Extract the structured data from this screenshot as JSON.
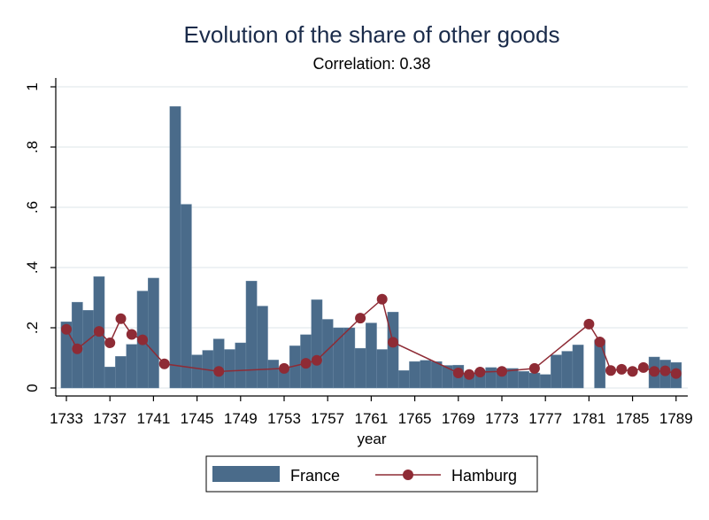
{
  "chart_data": {
    "type": "bar",
    "title": "Evolution of the share of other goods",
    "subtitle": "Correlation: 0.38",
    "xlabel": "year",
    "ylabel": "",
    "ylim": [
      0,
      1
    ],
    "yticks": [
      0,
      0.2,
      0.4,
      0.6,
      0.8,
      1
    ],
    "ytick_labels": [
      "0",
      ".2",
      ".4",
      ".6",
      ".8",
      "1"
    ],
    "xlim": [
      1732,
      1790
    ],
    "xticks": [
      1733,
      1737,
      1741,
      1745,
      1749,
      1753,
      1757,
      1761,
      1765,
      1769,
      1773,
      1777,
      1781,
      1785,
      1789
    ],
    "grid": true,
    "legend_position": "bottom",
    "colors": {
      "France": "#4a6b8a",
      "Hamburg": "#8e2b35"
    },
    "series": [
      {
        "name": "France",
        "type": "bar",
        "x": [
          1733,
          1734,
          1735,
          1736,
          1737,
          1738,
          1739,
          1740,
          1741,
          1743,
          1744,
          1745,
          1746,
          1747,
          1748,
          1749,
          1750,
          1751,
          1752,
          1753,
          1754,
          1755,
          1756,
          1757,
          1758,
          1759,
          1760,
          1761,
          1762,
          1763,
          1764,
          1765,
          1766,
          1767,
          1768,
          1769,
          1770,
          1771,
          1772,
          1773,
          1774,
          1775,
          1776,
          1777,
          1778,
          1779,
          1780,
          1782,
          1787,
          1788,
          1789
        ],
        "values": [
          0.22,
          0.285,
          0.258,
          0.37,
          0.07,
          0.105,
          0.145,
          0.322,
          0.365,
          0.935,
          0.61,
          0.11,
          0.125,
          0.163,
          0.128,
          0.15,
          0.355,
          0.272,
          0.093,
          0.065,
          0.14,
          0.177,
          0.293,
          0.228,
          0.2,
          0.2,
          0.132,
          0.216,
          0.128,
          0.252,
          0.058,
          0.088,
          0.092,
          0.088,
          0.075,
          0.076,
          0.05,
          0.058,
          0.068,
          0.065,
          0.065,
          0.055,
          0.05,
          0.045,
          0.11,
          0.122,
          0.143,
          0.16,
          0.103,
          0.093,
          0.085
        ]
      },
      {
        "name": "Hamburg",
        "type": "line",
        "x": [
          1733,
          1734,
          1736,
          1737,
          1738,
          1739,
          1740,
          1742,
          1747,
          1753,
          1755,
          1756,
          1760,
          1762,
          1763,
          1769,
          1770,
          1771,
          1773,
          1776,
          1781,
          1782,
          1783,
          1784,
          1785,
          1786,
          1787,
          1788,
          1789
        ],
        "values": [
          0.195,
          0.13,
          0.188,
          0.15,
          0.23,
          0.178,
          0.16,
          0.08,
          0.055,
          0.065,
          0.082,
          0.092,
          0.232,
          0.295,
          0.152,
          0.05,
          0.045,
          0.053,
          0.055,
          0.065,
          0.212,
          0.153,
          0.058,
          0.062,
          0.055,
          0.068,
          0.055,
          0.057,
          0.048
        ]
      }
    ]
  }
}
